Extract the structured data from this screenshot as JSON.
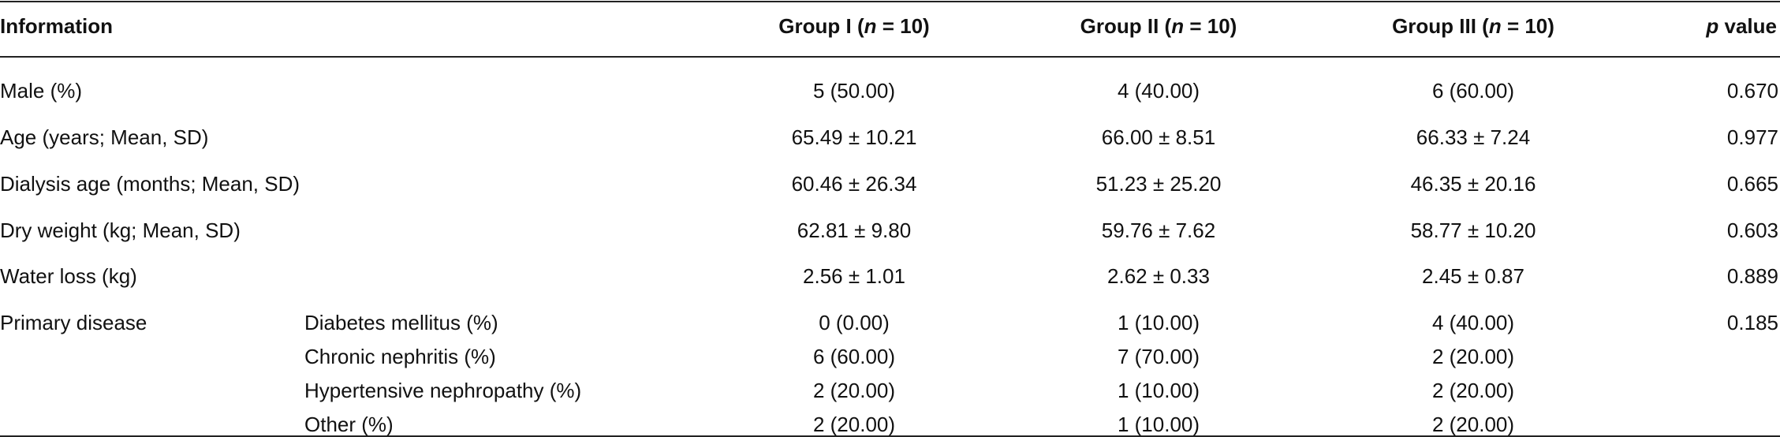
{
  "table": {
    "header": [
      {
        "text": "Information"
      },
      {
        "text": "Group I (",
        "italic": "n",
        "tail": " = 10)"
      },
      {
        "text": "Group II (",
        "italic": "n",
        "tail": " = 10)"
      },
      {
        "text": "Group III (",
        "italic": "n",
        "tail": " = 10)"
      },
      {
        "italic": "p",
        "tail": " value"
      }
    ],
    "rows": [
      {
        "label": "Male (%)",
        "groups": [
          "5 (50.00)",
          "4 (40.00)",
          "6 (60.00)"
        ],
        "p": "0.670"
      },
      {
        "label": "Age (years; Mean, SD)",
        "groups": [
          "65.49 ± 10.21",
          "66.00 ± 8.51",
          "66.33 ± 7.24"
        ],
        "p": "0.977"
      },
      {
        "label": "Dialysis age (months; Mean, SD)",
        "groups": [
          "60.46 ± 26.34",
          "51.23 ± 25.20",
          "46.35 ± 20.16"
        ],
        "p": "0.665"
      },
      {
        "label": "Dry weight (kg; Mean, SD)",
        "groups": [
          "62.81 ± 9.80",
          "59.76 ± 7.62",
          "58.77 ± 10.20"
        ],
        "p": "0.603"
      },
      {
        "label": "Water loss (kg)",
        "groups": [
          "2.56 ± 1.01",
          "2.62 ± 0.33",
          "2.45 ± 0.87"
        ],
        "p": "0.889"
      },
      {
        "label": "Primary disease",
        "sublabel": "Diabetes mellitus (%)",
        "groups": [
          "0 (0.00)",
          "1 (10.00)",
          "4 (40.00)"
        ],
        "p": "0.185"
      },
      {
        "sublabel": "Chronic nephritis (%)",
        "groups": [
          "6 (60.00)",
          "7 (70.00)",
          "2 (20.00)"
        ]
      },
      {
        "sublabel": "Hypertensive nephropathy (%)",
        "groups": [
          "2 (20.00)",
          "1 (10.00)",
          "2 (20.00)"
        ]
      },
      {
        "sublabel": "Other (%)",
        "groups": [
          "2 (20.00)",
          "1 (10.00)",
          "2 (20.00)"
        ]
      }
    ]
  }
}
